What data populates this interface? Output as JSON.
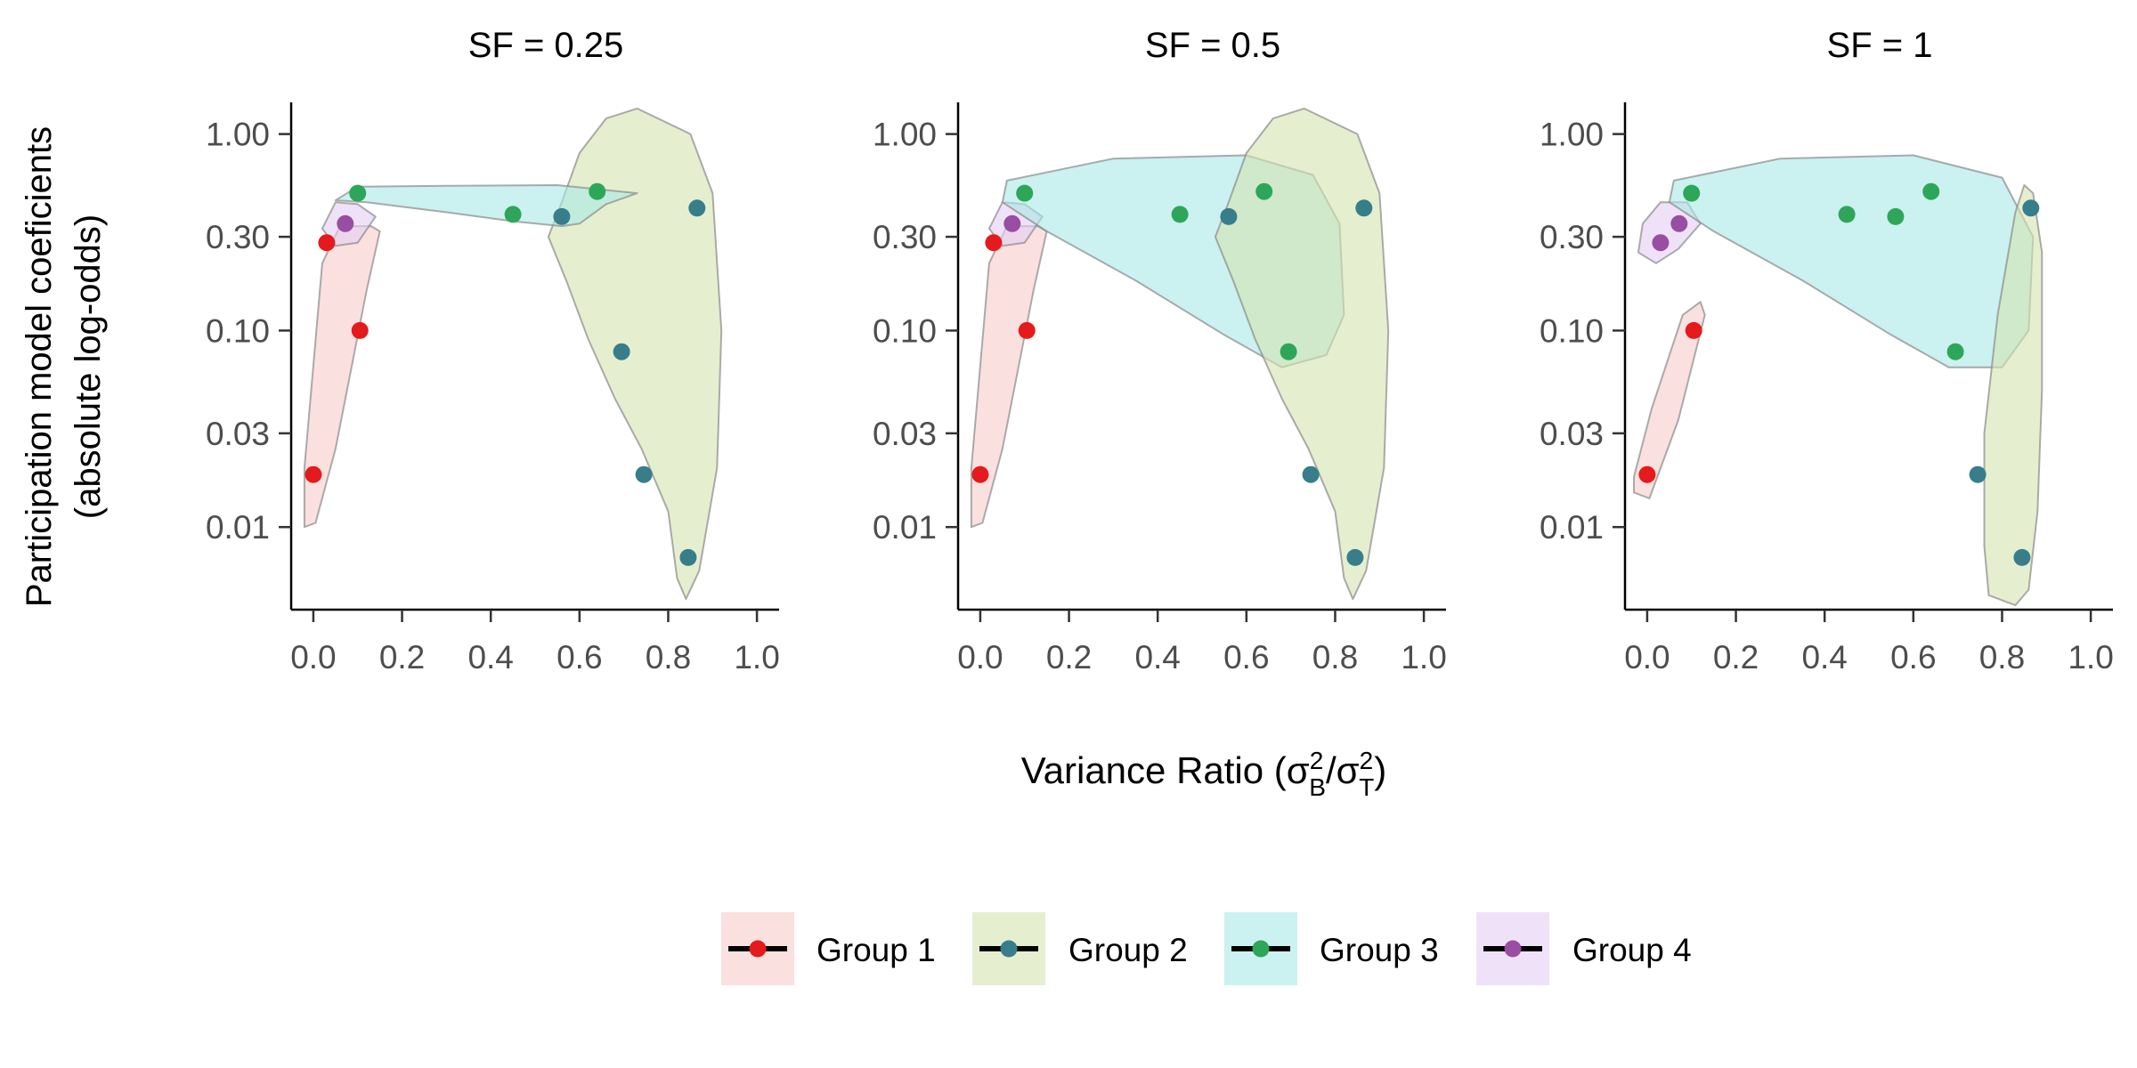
{
  "chart_data": {
    "type": "scatter",
    "ylabel": "Participation model coeficients",
    "ylabel_line2": "(absolute log-odds)",
    "xlabel_prefix": "Variance Ratio (",
    "xlabel_suffix": ")",
    "xlabel_math": {
      "sigma": "σ",
      "sup": "2",
      "sub_num": "B",
      "sub_den": "T",
      "slash": "/"
    },
    "xlim": [
      -0.05,
      1.05
    ],
    "ylim": [
      0.0038,
      1.45
    ],
    "y_scale": "log",
    "x_ticks": [
      0.0,
      0.2,
      0.4,
      0.6,
      0.8,
      1.0
    ],
    "x_tick_labels": [
      "0.0",
      "0.2",
      "0.4",
      "0.6",
      "0.8",
      "1.0"
    ],
    "y_ticks": [
      1.0,
      0.3,
      0.1,
      0.03,
      0.01
    ],
    "y_tick_labels": [
      "1.00",
      "0.30",
      "0.10",
      "0.03",
      "0.01"
    ],
    "grid": false,
    "legend_position": "bottom",
    "colors": {
      "Group 1": "#e41a1c",
      "Group 2": "#377e8a",
      "Group 3": "#2ea65a",
      "Group 4": "#984ea3"
    },
    "fill_colors": {
      "Group 1": "#f8cccc",
      "Group 2": "#d4e4b0",
      "Group 3": "#a8e8e6",
      "Group 4": "#e4cff4"
    },
    "legend": [
      "Group 1",
      "Group 2",
      "Group 3",
      "Group 4"
    ],
    "panels": [
      {
        "title": "SF = 0.25",
        "points": [
          {
            "group": "Group 1",
            "x": 0.0,
            "y": 0.0185
          },
          {
            "group": "Group 1",
            "x": 0.03,
            "y": 0.28
          },
          {
            "group": "Group 1",
            "x": 0.105,
            "y": 0.1
          },
          {
            "group": "Group 4",
            "x": 0.072,
            "y": 0.35
          },
          {
            "group": "Group 3",
            "x": 0.1,
            "y": 0.5
          },
          {
            "group": "Group 3",
            "x": 0.45,
            "y": 0.39
          },
          {
            "group": "Group 3",
            "x": 0.64,
            "y": 0.51
          },
          {
            "group": "Group 2",
            "x": 0.56,
            "y": 0.38
          },
          {
            "group": "Group 2",
            "x": 0.695,
            "y": 0.078
          },
          {
            "group": "Group 2",
            "x": 0.745,
            "y": 0.0185
          },
          {
            "group": "Group 2",
            "x": 0.845,
            "y": 0.007
          },
          {
            "group": "Group 2",
            "x": 0.865,
            "y": 0.42
          }
        ],
        "hulls": [
          {
            "group": "Group 1",
            "points": [
              [
                -0.02,
                0.01
              ],
              [
                0.005,
                0.0105
              ],
              [
                0.05,
                0.025
              ],
              [
                0.12,
                0.16
              ],
              [
                0.15,
                0.32
              ],
              [
                0.13,
                0.34
              ],
              [
                0.06,
                0.34
              ],
              [
                0.02,
                0.22
              ],
              [
                -0.02,
                0.02
              ]
            ]
          },
          {
            "group": "Group 4",
            "points": [
              [
                0.02,
                0.33
              ],
              [
                0.05,
                0.45
              ],
              [
                0.1,
                0.44
              ],
              [
                0.14,
                0.38
              ],
              [
                0.1,
                0.28
              ],
              [
                0.05,
                0.27
              ]
            ]
          },
          {
            "group": "Group 2",
            "points": [
              [
                0.53,
                0.3
              ],
              [
                0.56,
                0.45
              ],
              [
                0.6,
                0.8
              ],
              [
                0.66,
                1.2
              ],
              [
                0.73,
                1.35
              ],
              [
                0.85,
                1.0
              ],
              [
                0.9,
                0.5
              ],
              [
                0.92,
                0.1
              ],
              [
                0.91,
                0.02
              ],
              [
                0.87,
                0.006
              ],
              [
                0.84,
                0.0043
              ],
              [
                0.82,
                0.0055
              ],
              [
                0.8,
                0.012
              ],
              [
                0.74,
                0.025
              ],
              [
                0.68,
                0.045
              ],
              [
                0.62,
                0.09
              ],
              [
                0.57,
                0.18
              ]
            ]
          },
          {
            "group": "Group 3",
            "points": [
              [
                0.05,
                0.46
              ],
              [
                0.1,
                0.54
              ],
              [
                0.3,
                0.545
              ],
              [
                0.55,
                0.55
              ],
              [
                0.73,
                0.5
              ],
              [
                0.66,
                0.44
              ],
              [
                0.6,
                0.35
              ],
              [
                0.56,
                0.34
              ],
              [
                0.45,
                0.36
              ],
              [
                0.3,
                0.4
              ],
              [
                0.12,
                0.45
              ]
            ]
          }
        ]
      },
      {
        "title": "SF = 0.5",
        "points": [
          {
            "group": "Group 1",
            "x": 0.0,
            "y": 0.0185
          },
          {
            "group": "Group 1",
            "x": 0.03,
            "y": 0.28
          },
          {
            "group": "Group 1",
            "x": 0.105,
            "y": 0.1
          },
          {
            "group": "Group 4",
            "x": 0.072,
            "y": 0.35
          },
          {
            "group": "Group 3",
            "x": 0.1,
            "y": 0.5
          },
          {
            "group": "Group 3",
            "x": 0.45,
            "y": 0.39
          },
          {
            "group": "Group 3",
            "x": 0.64,
            "y": 0.51
          },
          {
            "group": "Group 3",
            "x": 0.695,
            "y": 0.078
          },
          {
            "group": "Group 2",
            "x": 0.56,
            "y": 0.38
          },
          {
            "group": "Group 2",
            "x": 0.745,
            "y": 0.0185
          },
          {
            "group": "Group 2",
            "x": 0.845,
            "y": 0.007
          },
          {
            "group": "Group 2",
            "x": 0.865,
            "y": 0.42
          }
        ],
        "hulls": [
          {
            "group": "Group 1",
            "points": [
              [
                -0.02,
                0.01
              ],
              [
                0.005,
                0.0105
              ],
              [
                0.05,
                0.025
              ],
              [
                0.12,
                0.16
              ],
              [
                0.15,
                0.32
              ],
              [
                0.13,
                0.34
              ],
              [
                0.06,
                0.34
              ],
              [
                0.02,
                0.22
              ],
              [
                -0.02,
                0.02
              ]
            ]
          },
          {
            "group": "Group 4",
            "points": [
              [
                0.02,
                0.33
              ],
              [
                0.05,
                0.45
              ],
              [
                0.1,
                0.44
              ],
              [
                0.14,
                0.38
              ],
              [
                0.1,
                0.28
              ],
              [
                0.05,
                0.27
              ]
            ]
          },
          {
            "group": "Group 3",
            "points": [
              [
                0.05,
                0.45
              ],
              [
                0.06,
                0.58
              ],
              [
                0.3,
                0.75
              ],
              [
                0.6,
                0.78
              ],
              [
                0.75,
                0.62
              ],
              [
                0.81,
                0.35
              ],
              [
                0.82,
                0.12
              ],
              [
                0.78,
                0.075
              ],
              [
                0.68,
                0.065
              ],
              [
                0.55,
                0.095
              ],
              [
                0.35,
                0.18
              ],
              [
                0.15,
                0.32
              ]
            ]
          },
          {
            "group": "Group 2",
            "points": [
              [
                0.53,
                0.3
              ],
              [
                0.56,
                0.45
              ],
              [
                0.6,
                0.8
              ],
              [
                0.66,
                1.2
              ],
              [
                0.73,
                1.35
              ],
              [
                0.85,
                1.0
              ],
              [
                0.9,
                0.5
              ],
              [
                0.92,
                0.1
              ],
              [
                0.91,
                0.02
              ],
              [
                0.87,
                0.006
              ],
              [
                0.84,
                0.0043
              ],
              [
                0.82,
                0.0055
              ],
              [
                0.8,
                0.012
              ],
              [
                0.74,
                0.025
              ],
              [
                0.68,
                0.045
              ],
              [
                0.62,
                0.09
              ],
              [
                0.57,
                0.18
              ]
            ]
          }
        ]
      },
      {
        "title": "SF = 1",
        "points": [
          {
            "group": "Group 1",
            "x": 0.0,
            "y": 0.0185
          },
          {
            "group": "Group 1",
            "x": 0.105,
            "y": 0.1
          },
          {
            "group": "Group 4",
            "x": 0.03,
            "y": 0.28
          },
          {
            "group": "Group 4",
            "x": 0.072,
            "y": 0.35
          },
          {
            "group": "Group 3",
            "x": 0.1,
            "y": 0.5
          },
          {
            "group": "Group 3",
            "x": 0.45,
            "y": 0.39
          },
          {
            "group": "Group 3",
            "x": 0.56,
            "y": 0.38
          },
          {
            "group": "Group 3",
            "x": 0.64,
            "y": 0.51
          },
          {
            "group": "Group 3",
            "x": 0.695,
            "y": 0.078
          },
          {
            "group": "Group 2",
            "x": 0.745,
            "y": 0.0185
          },
          {
            "group": "Group 2",
            "x": 0.845,
            "y": 0.007
          },
          {
            "group": "Group 2",
            "x": 0.865,
            "y": 0.42
          }
        ],
        "hulls": [
          {
            "group": "Group 1",
            "points": [
              [
                -0.03,
                0.015
              ],
              [
                0.005,
                0.014
              ],
              [
                0.07,
                0.035
              ],
              [
                0.13,
                0.12
              ],
              [
                0.12,
                0.14
              ],
              [
                0.08,
                0.12
              ],
              [
                0.01,
                0.04
              ],
              [
                -0.03,
                0.018
              ]
            ]
          },
          {
            "group": "Group 4",
            "points": [
              [
                -0.02,
                0.25
              ],
              [
                -0.01,
                0.35
              ],
              [
                0.03,
                0.45
              ],
              [
                0.09,
                0.45
              ],
              [
                0.12,
                0.35
              ],
              [
                0.07,
                0.26
              ],
              [
                0.02,
                0.22
              ]
            ]
          },
          {
            "group": "Group 3",
            "points": [
              [
                0.05,
                0.45
              ],
              [
                0.06,
                0.58
              ],
              [
                0.3,
                0.75
              ],
              [
                0.6,
                0.78
              ],
              [
                0.8,
                0.6
              ],
              [
                0.87,
                0.3
              ],
              [
                0.86,
                0.1
              ],
              [
                0.8,
                0.065
              ],
              [
                0.68,
                0.065
              ],
              [
                0.55,
                0.095
              ],
              [
                0.35,
                0.18
              ],
              [
                0.15,
                0.32
              ]
            ]
          },
          {
            "group": "Group 2",
            "points": [
              [
                0.76,
                0.03
              ],
              [
                0.79,
                0.12
              ],
              [
                0.83,
                0.4
              ],
              [
                0.85,
                0.55
              ],
              [
                0.87,
                0.5
              ],
              [
                0.89,
                0.25
              ],
              [
                0.89,
                0.05
              ],
              [
                0.88,
                0.012
              ],
              [
                0.86,
                0.0048
              ],
              [
                0.83,
                0.004
              ],
              [
                0.77,
                0.0045
              ],
              [
                0.76,
                0.008
              ],
              [
                0.76,
                0.018
              ]
            ]
          }
        ]
      }
    ]
  }
}
